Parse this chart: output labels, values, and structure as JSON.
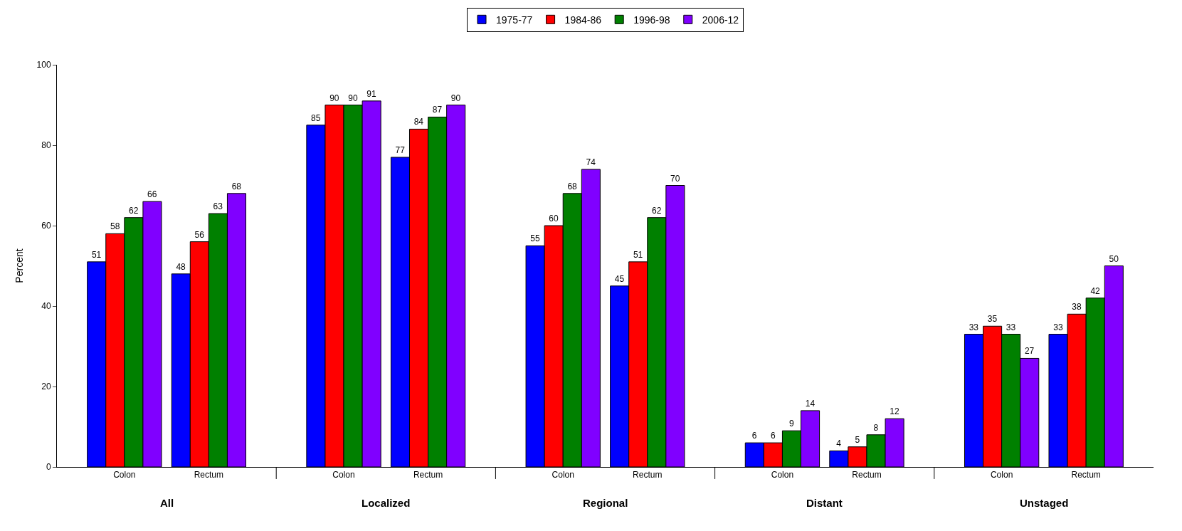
{
  "chart_data": {
    "type": "bar",
    "ylabel": "Percent",
    "categories": [
      "Colon",
      "Rectum",
      "Colon",
      "Rectum",
      "Colon",
      "Rectum",
      "Colon",
      "Rectum",
      "Colon",
      "Rectum"
    ],
    "annotations": [
      "All",
      "Localized",
      "Regional",
      "Distant",
      "Unstaged"
    ],
    "series": [
      {
        "name": "1975-77",
        "color": "#0000ff",
        "values": [
          51,
          48,
          85,
          77,
          55,
          45,
          6,
          4,
          33,
          33
        ]
      },
      {
        "name": "1984-86",
        "color": "#ff0000",
        "values": [
          58,
          56,
          90,
          84,
          60,
          51,
          6,
          5,
          35,
          38
        ]
      },
      {
        "name": "1996-98",
        "color": "#008000",
        "values": [
          62,
          63,
          90,
          87,
          68,
          62,
          9,
          8,
          33,
          42
        ]
      },
      {
        "name": "2006-12",
        "color": "#8000ff",
        "values": [
          66,
          68,
          91,
          90,
          74,
          70,
          14,
          12,
          27,
          50
        ]
      }
    ],
    "ylim": [
      0,
      100
    ],
    "yticks": [
      0,
      20,
      40,
      60,
      80,
      100
    ],
    "data_labels": true,
    "legend": "top"
  }
}
